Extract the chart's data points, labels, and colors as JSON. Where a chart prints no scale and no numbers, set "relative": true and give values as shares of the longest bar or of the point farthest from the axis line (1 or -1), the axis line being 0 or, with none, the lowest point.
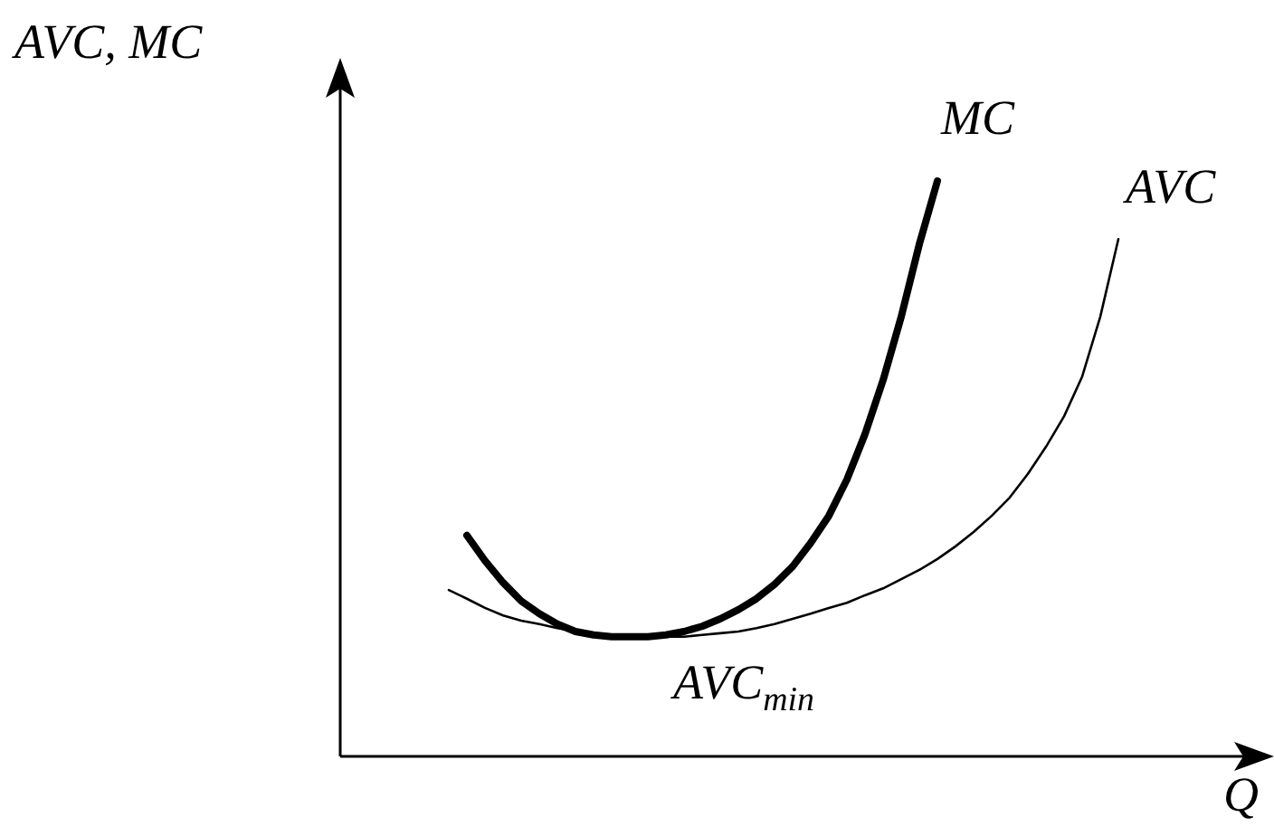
{
  "chart_data": {
    "type": "line",
    "relative": true,
    "ylabel": "AVC, MC",
    "xlabel": "Q",
    "marker": "none",
    "grid": false,
    "legend": false,
    "categories": [
      null,
      null,
      null,
      null,
      null,
      null,
      null,
      null,
      null,
      null,
      null,
      null,
      null,
      null,
      null,
      null,
      null,
      null,
      null,
      null,
      null,
      null,
      null,
      null,
      null,
      null,
      null,
      null,
      null,
      null,
      null,
      null,
      null,
      null,
      null,
      null,
      null,
      null,
      null,
      null,
      null,
      null,
      null,
      null,
      null,
      null,
      null,
      null,
      null,
      null,
      null,
      null
    ],
    "series": [
      {
        "name": "MC",
        "color": "#000000",
        "values": [
          null,
          null,
          null,
          null,
          null,
          null,
          null,
          0.384,
          0.34,
          0.302,
          0.27,
          0.248,
          0.23,
          0.217,
          0.211,
          0.208,
          0.208,
          0.208,
          0.211,
          0.217,
          0.226,
          0.239,
          0.255,
          0.274,
          0.299,
          0.33,
          0.371,
          0.418,
          0.481,
          0.56,
          0.654,
          0.764,
          0.89,
          1,
          null,
          null,
          null,
          null,
          null,
          null,
          null,
          null,
          null,
          null,
          null,
          null,
          null,
          null,
          null,
          null,
          null,
          null
        ]
      },
      {
        "name": "AVC",
        "color": "#000000",
        "values": [
          null,
          null,
          null,
          null,
          null,
          null,
          0.289,
          0.274,
          0.258,
          0.245,
          0.236,
          0.23,
          0.223,
          0.217,
          0.214,
          0.211,
          0.208,
          0.208,
          0.208,
          0.208,
          0.211,
          0.214,
          0.217,
          0.223,
          0.23,
          0.239,
          0.248,
          0.258,
          0.267,
          0.28,
          0.292,
          0.308,
          0.324,
          0.343,
          0.365,
          0.39,
          0.418,
          0.45,
          0.491,
          0.538,
          0.591,
          0.66,
          0.764,
          0.899,
          null,
          null,
          null,
          null,
          null,
          null,
          null,
          null
        ]
      }
    ],
    "annotations": [
      "AVC$_{min}$"
    ]
  }
}
